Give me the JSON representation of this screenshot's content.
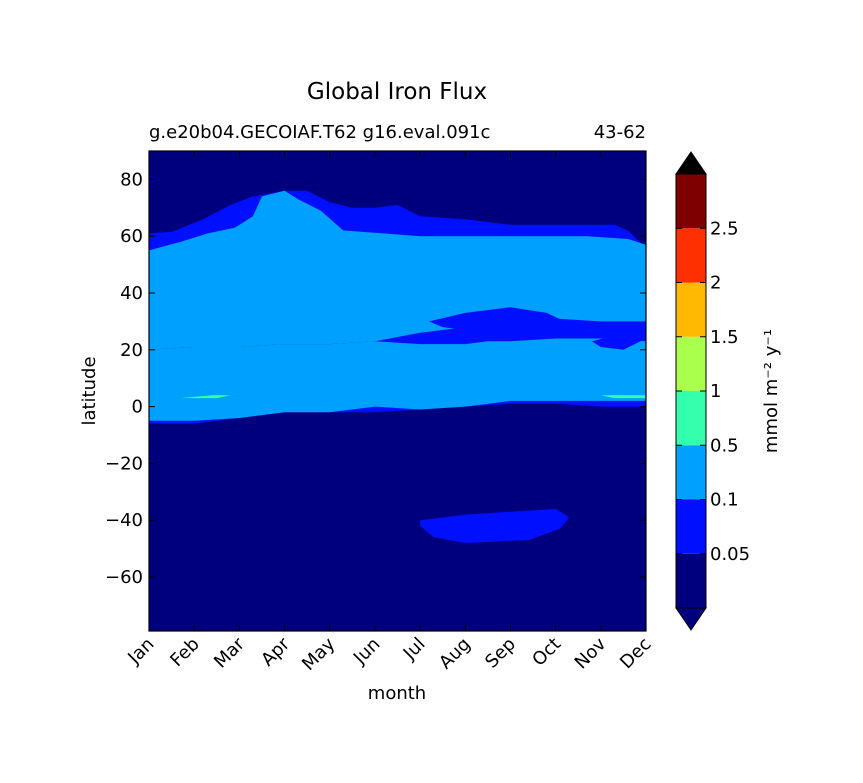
{
  "chart_data": {
    "type": "contour",
    "title": "Global Iron Flux",
    "subtitle_left": "g.e20b04.GECOIAF.T62 g16.eval.091c",
    "subtitle_right": "43-62",
    "xlabel": "month",
    "ylabel": "latitude",
    "x_categories": [
      "Jan",
      "Feb",
      "Mar",
      "Apr",
      "May",
      "Jun",
      "Jul",
      "Aug",
      "Sep",
      "Oct",
      "Nov",
      "Dec"
    ],
    "ylim": [
      -79,
      90
    ],
    "y_ticks": [
      80,
      60,
      40,
      20,
      0,
      -20,
      -40,
      -60
    ],
    "colorbar": {
      "label": "mmol m⁻² y⁻¹",
      "extend": "both",
      "levels": [
        "",
        "0.05",
        "0.1",
        "0.5",
        "1",
        "1.5",
        "2",
        "2.5",
        ""
      ],
      "colors": [
        "#00007f",
        "#0010ff",
        "#00a0ff",
        "#33ffad",
        "#aaff4d",
        "#ffb900",
        "#ff3000",
        "#7f0000"
      ],
      "under_color": "#00007f",
      "over_color": "#000000"
    },
    "regions": [
      {
        "level_index": 0,
        "description": "background",
        "value_range": "<0.05"
      },
      {
        "level_index": 1,
        "value_range": "0.05-0.1",
        "outline": [
          [
            0,
            61
          ],
          [
            0.5,
            61.5
          ],
          [
            1.2,
            66
          ],
          [
            1.8,
            71
          ],
          [
            2.3,
            74
          ],
          [
            3,
            76
          ],
          [
            3.5,
            76
          ],
          [
            4,
            72
          ],
          [
            4.5,
            70
          ],
          [
            5,
            70
          ],
          [
            5.5,
            71
          ],
          [
            6,
            67
          ],
          [
            7,
            66
          ],
          [
            8,
            64
          ],
          [
            9.5,
            64
          ],
          [
            10.3,
            64
          ],
          [
            10.6,
            62
          ],
          [
            11,
            56
          ],
          [
            11,
            0
          ],
          [
            10,
            0
          ],
          [
            9,
            1
          ],
          [
            8,
            1
          ],
          [
            7,
            0
          ],
          [
            6,
            -1
          ],
          [
            5,
            -2
          ],
          [
            4,
            -2
          ],
          [
            3,
            -2
          ],
          [
            2,
            -4
          ],
          [
            1,
            -6
          ],
          [
            0,
            -6
          ]
        ]
      },
      {
        "level_index": 2,
        "value_range": "0.1-0.5",
        "outline": [
          [
            0,
            55
          ],
          [
            0.7,
            58
          ],
          [
            1.3,
            61
          ],
          [
            1.9,
            63
          ],
          [
            2.3,
            67
          ],
          [
            2.5,
            74
          ],
          [
            3,
            76
          ],
          [
            3.3,
            73
          ],
          [
            3.8,
            69
          ],
          [
            4.3,
            62
          ],
          [
            5.2,
            61
          ],
          [
            6,
            60
          ],
          [
            8,
            60
          ],
          [
            9.7,
            60
          ],
          [
            10.6,
            59
          ],
          [
            11,
            57
          ],
          [
            11,
            30
          ],
          [
            10,
            30
          ],
          [
            9,
            31
          ],
          [
            8,
            29
          ],
          [
            7,
            28
          ],
          [
            6,
            26
          ],
          [
            5,
            23
          ],
          [
            4,
            22
          ],
          [
            3,
            22
          ],
          [
            2,
            21
          ],
          [
            1,
            21
          ],
          [
            0,
            20
          ]
        ]
      },
      {
        "level_index": 2,
        "value_range": "0.1-0.5 (lower band)",
        "outline": [
          [
            0,
            20
          ],
          [
            1,
            21
          ],
          [
            2,
            21
          ],
          [
            3,
            22
          ],
          [
            4,
            22
          ],
          [
            5,
            23
          ],
          [
            6,
            22
          ],
          [
            7,
            22
          ],
          [
            7.5,
            23
          ],
          [
            8,
            23
          ],
          [
            9,
            24
          ],
          [
            10,
            24
          ],
          [
            11,
            23
          ],
          [
            11,
            2
          ],
          [
            10,
            2
          ],
          [
            9,
            2
          ],
          [
            8,
            2
          ],
          [
            7,
            0
          ],
          [
            6,
            -1
          ],
          [
            5,
            0
          ],
          [
            4,
            -2
          ],
          [
            3,
            -2
          ],
          [
            2,
            -4
          ],
          [
            1,
            -5
          ],
          [
            0,
            -5
          ]
        ]
      },
      {
        "level_index": 3,
        "value_range": "0.5-1",
        "outline": [
          [
            0,
            3
          ],
          [
            0.7,
            3
          ],
          [
            1.4,
            4
          ],
          [
            1.8,
            4
          ],
          [
            1.5,
            3
          ],
          [
            0.5,
            3
          ]
        ]
      },
      {
        "level_index": 3,
        "value_range": "0.5-1",
        "outline": [
          [
            10,
            4
          ],
          [
            11,
            4
          ],
          [
            11,
            3
          ],
          [
            10.3,
            3
          ]
        ]
      },
      {
        "level_index": 1,
        "value_range": "0.05-0.1",
        "outline": [
          [
            6,
            -40
          ],
          [
            7,
            -38
          ],
          [
            8,
            -37
          ],
          [
            9,
            -36
          ],
          [
            9.3,
            -39
          ],
          [
            9.1,
            -43
          ],
          [
            8.4,
            -47
          ],
          [
            7,
            -48
          ],
          [
            6.3,
            -46
          ],
          [
            6,
            -42
          ]
        ]
      },
      {
        "level_index": 1,
        "value_range": "0.05-0.1",
        "outline": [
          [
            6.2,
            30
          ],
          [
            7,
            33
          ],
          [
            8,
            35
          ],
          [
            8.8,
            33
          ],
          [
            9.2,
            30
          ],
          [
            8.5,
            27
          ],
          [
            7.5,
            26
          ],
          [
            6.5,
            28
          ]
        ]
      },
      {
        "level_index": 1,
        "value_range": "0.05-0.1",
        "outline": [
          [
            9.8,
            23
          ],
          [
            10.3,
            25
          ],
          [
            10.8,
            26
          ],
          [
            11,
            24
          ],
          [
            10.5,
            20
          ],
          [
            10,
            21
          ]
        ]
      }
    ]
  }
}
